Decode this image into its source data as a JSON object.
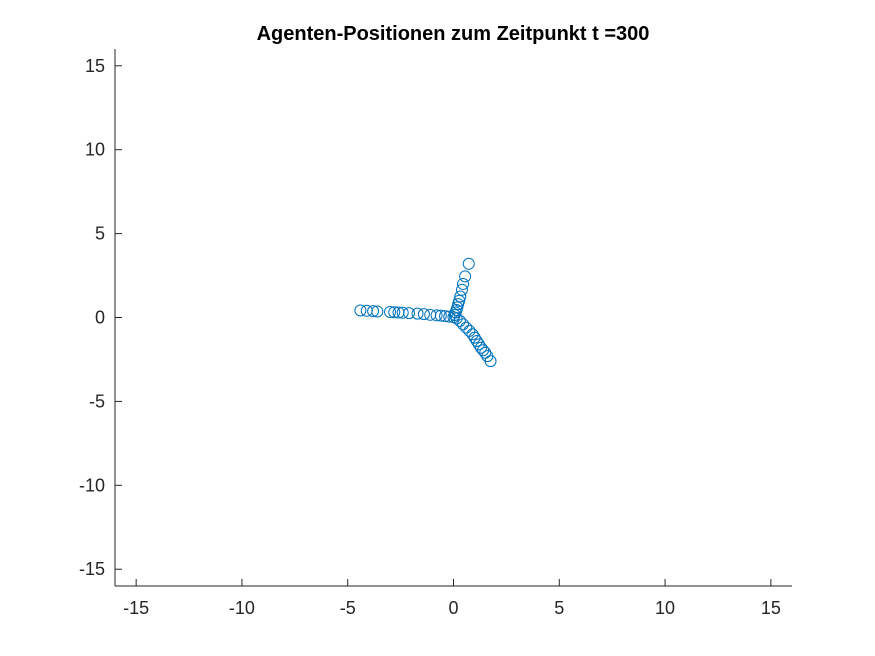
{
  "chart_data": {
    "type": "scatter",
    "title": "Agenten-Positionen zum Zeitpunkt t =300",
    "xlabel": "",
    "ylabel": "",
    "xlim": [
      -16,
      16
    ],
    "ylim": [
      -16,
      16
    ],
    "xticks": [
      -15,
      -10,
      -5,
      0,
      5,
      10,
      15
    ],
    "yticks": [
      -15,
      -10,
      -5,
      0,
      5,
      10,
      15
    ],
    "grid": false,
    "marker": "circle-open",
    "color": "#0072BD",
    "series": [
      {
        "points": [
          [
            -4.4,
            0.42
          ],
          [
            -4.1,
            0.4
          ],
          [
            -3.8,
            0.38
          ],
          [
            -3.6,
            0.36
          ],
          [
            -3.0,
            0.33
          ],
          [
            -2.8,
            0.31
          ],
          [
            -2.6,
            0.3
          ],
          [
            -2.4,
            0.28
          ],
          [
            -2.1,
            0.26
          ],
          [
            -1.7,
            0.23
          ],
          [
            -1.4,
            0.2
          ],
          [
            -1.1,
            0.16
          ],
          [
            -0.8,
            0.13
          ],
          [
            -0.6,
            0.11
          ],
          [
            -0.4,
            0.08
          ],
          [
            -0.2,
            0.05
          ],
          [
            0.0,
            0.02
          ],
          [
            0.72,
            3.2
          ],
          [
            0.55,
            2.45
          ],
          [
            0.45,
            2.0
          ],
          [
            0.4,
            1.65
          ],
          [
            0.32,
            1.25
          ],
          [
            0.27,
            1.0
          ],
          [
            0.22,
            0.8
          ],
          [
            0.18,
            0.6
          ],
          [
            0.14,
            0.45
          ],
          [
            0.1,
            0.3
          ],
          [
            0.06,
            0.15
          ],
          [
            0.15,
            -0.05
          ],
          [
            0.3,
            -0.2
          ],
          [
            0.45,
            -0.4
          ],
          [
            0.6,
            -0.6
          ],
          [
            0.75,
            -0.8
          ],
          [
            0.9,
            -1.0
          ],
          [
            1.0,
            -1.2
          ],
          [
            1.1,
            -1.4
          ],
          [
            1.2,
            -1.6
          ],
          [
            1.3,
            -1.8
          ],
          [
            1.4,
            -1.95
          ],
          [
            1.5,
            -2.1
          ],
          [
            1.6,
            -2.3
          ],
          [
            1.75,
            -2.6
          ]
        ]
      }
    ]
  }
}
